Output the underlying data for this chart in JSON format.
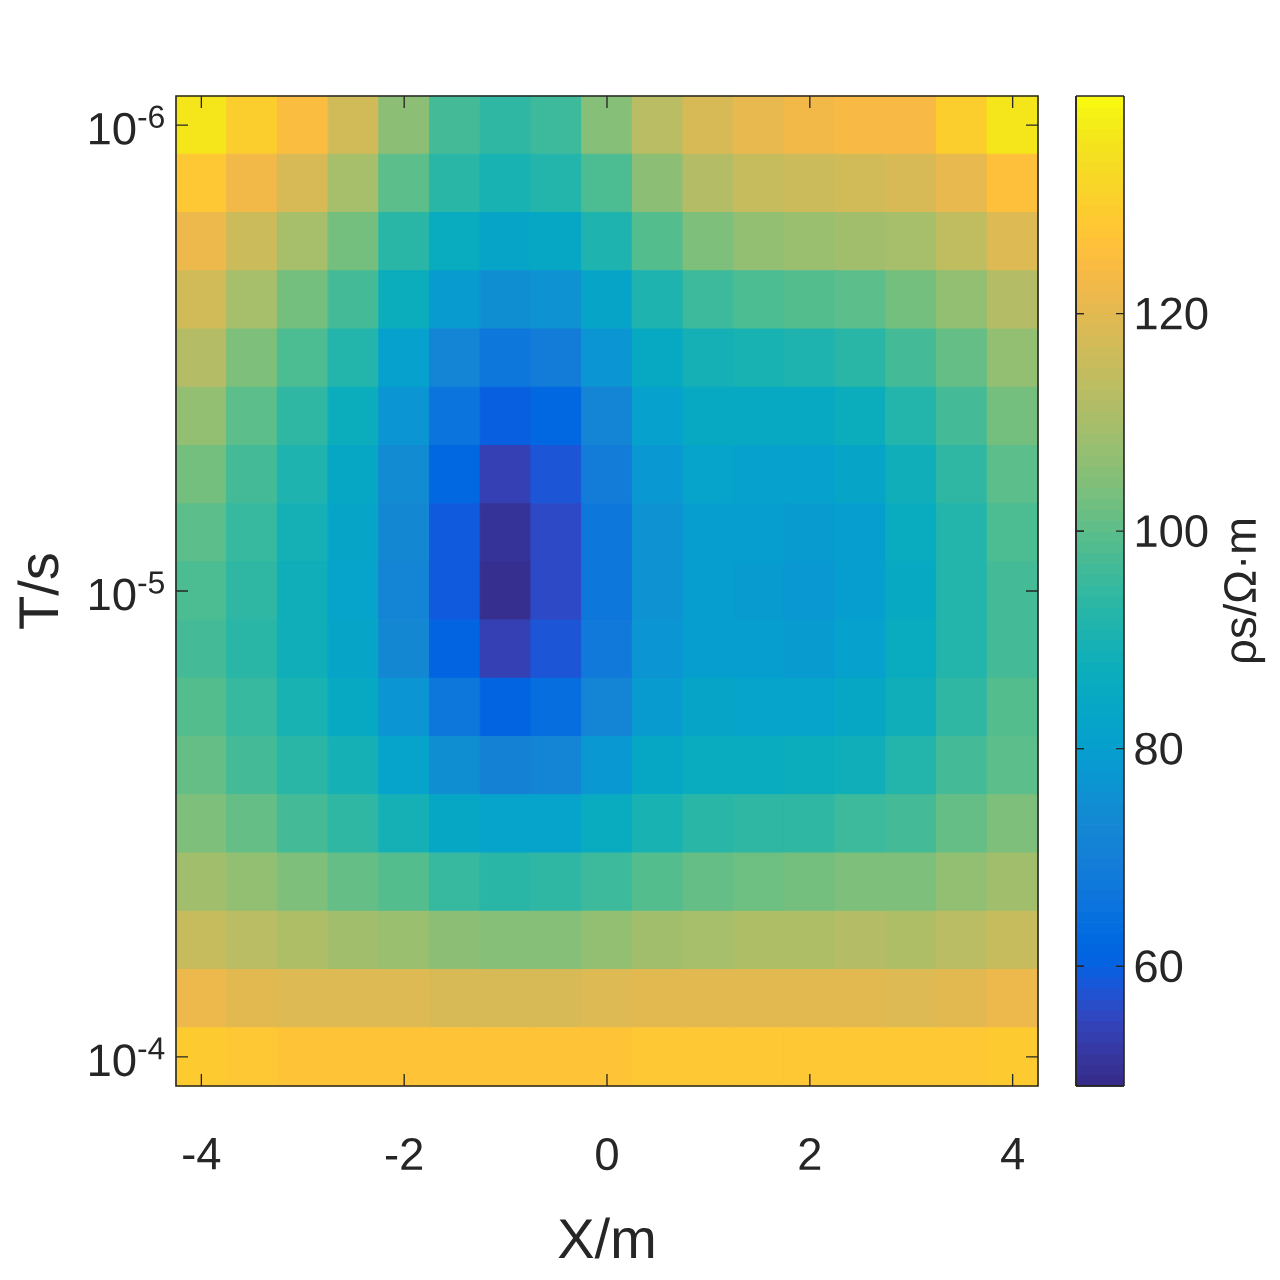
{
  "chart_data": {
    "type": "heatmap",
    "xlabel": "X/m",
    "ylabel": "T/s",
    "clabel": "ρs/Ω·m",
    "categories": [
      "-4",
      null,
      null,
      null,
      "-2",
      null,
      null,
      null,
      "0",
      null,
      null,
      null,
      "2",
      null,
      null,
      null,
      "4"
    ],
    "y_categories": [
      "10$^{-6}$",
      null,
      null,
      null,
      null,
      null,
      null,
      null,
      "10$^{-5}$",
      null,
      null,
      null,
      null,
      null,
      null,
      null,
      "10$^{-4}$"
    ],
    "cells": [
      [
        136,
        130,
        125,
        117,
        106,
        97,
        94,
        96,
        105,
        113,
        118,
        121,
        123,
        124,
        124,
        130,
        136
      ],
      [
        128,
        123,
        118,
        110,
        100,
        93,
        90,
        92,
        98,
        106,
        112,
        115,
        116,
        117,
        118,
        121,
        126
      ],
      [
        122,
        116,
        110,
        103,
        93,
        86,
        83,
        84,
        91,
        99,
        104,
        107,
        108,
        109,
        110,
        114,
        119
      ],
      [
        117,
        110,
        103,
        97,
        87,
        79,
        75,
        76,
        83,
        91,
        96,
        98,
        99,
        100,
        103,
        107,
        112
      ],
      [
        112,
        104,
        98,
        92,
        81,
        72,
        67,
        69,
        77,
        85,
        89,
        90,
        91,
        93,
        97,
        101,
        107
      ],
      [
        107,
        100,
        94,
        87,
        77,
        66,
        60,
        62,
        72,
        81,
        85,
        85,
        85,
        87,
        92,
        97,
        103
      ],
      [
        103,
        97,
        91,
        84,
        74,
        62,
        54,
        58,
        69,
        78,
        82,
        81,
        81,
        83,
        88,
        94,
        100
      ],
      [
        100,
        95,
        89,
        83,
        73,
        59,
        51,
        56,
        67,
        76,
        80,
        80,
        79,
        80,
        86,
        92,
        98
      ],
      [
        98,
        94,
        88,
        82,
        72,
        59,
        50,
        56,
        67,
        76,
        80,
        79,
        78,
        80,
        85,
        92,
        97
      ],
      [
        97,
        93,
        88,
        83,
        73,
        61,
        54,
        58,
        68,
        77,
        80,
        80,
        79,
        81,
        86,
        92,
        97
      ],
      [
        99,
        95,
        90,
        85,
        77,
        67,
        61,
        64,
        72,
        79,
        83,
        82,
        82,
        84,
        88,
        94,
        99
      ],
      [
        101,
        97,
        93,
        89,
        82,
        75,
        71,
        72,
        78,
        84,
        86,
        86,
        87,
        88,
        92,
        97,
        100
      ],
      [
        104,
        101,
        97,
        94,
        89,
        84,
        82,
        82,
        86,
        90,
        93,
        94,
        94,
        96,
        97,
        101,
        104
      ],
      [
        109,
        107,
        104,
        101,
        99,
        95,
        93,
        94,
        96,
        99,
        101,
        102,
        103,
        104,
        104,
        107,
        109
      ],
      [
        115,
        113,
        111,
        109,
        108,
        106,
        105,
        105,
        107,
        109,
        110,
        111,
        111,
        112,
        111,
        113,
        115
      ],
      [
        122,
        120,
        119,
        119,
        119,
        118,
        118,
        118,
        119,
        120,
        120,
        120,
        120,
        120,
        119,
        120,
        122
      ],
      [
        129,
        128,
        127,
        127,
        127,
        127,
        127,
        127,
        127,
        128,
        128,
        128,
        128,
        128,
        128,
        128,
        129
      ]
    ],
    "clim": [
      49,
      140
    ],
    "cticks": [
      60,
      80,
      100,
      120
    ]
  }
}
